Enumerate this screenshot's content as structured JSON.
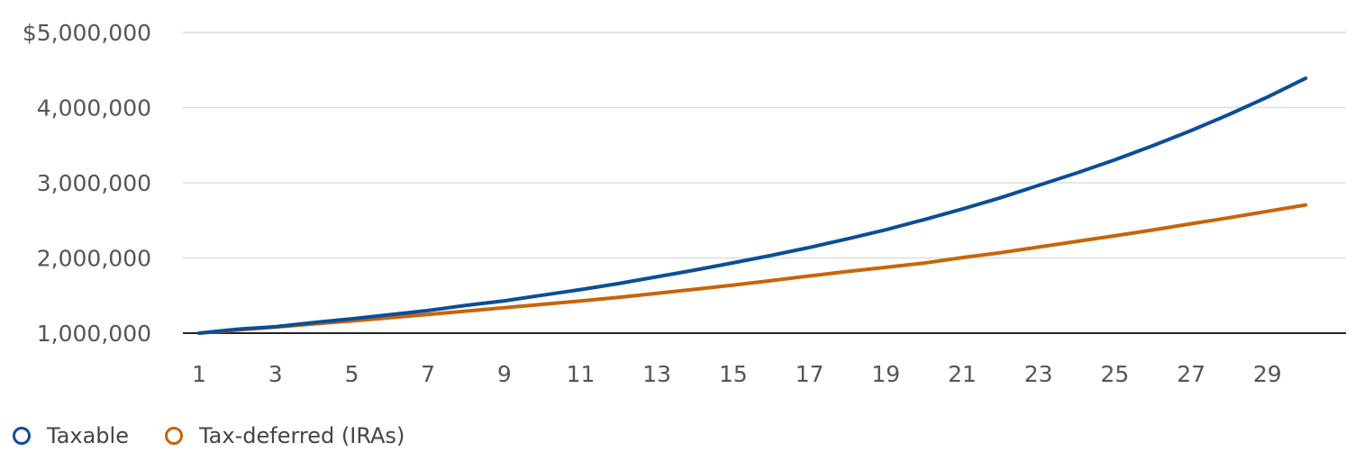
{
  "chart_data": {
    "type": "line",
    "x": [
      1,
      2,
      3,
      4,
      5,
      6,
      7,
      8,
      9,
      10,
      11,
      12,
      13,
      14,
      15,
      16,
      17,
      18,
      19,
      20,
      21,
      22,
      23,
      24,
      25,
      26,
      27,
      28,
      29,
      30
    ],
    "x_tick_labels": [
      "1",
      "3",
      "5",
      "7",
      "9",
      "11",
      "13",
      "15",
      "17",
      "19",
      "21",
      "23",
      "25",
      "27",
      "29"
    ],
    "y_tick_labels": [
      "$5,000,000",
      "4,000,000",
      "3,000,000",
      "2,000,000",
      "1,000,000"
    ],
    "ylim": [
      1000000,
      5000000
    ],
    "grid": true,
    "legend_position": "bottom-left",
    "series": [
      {
        "name": "Taxable",
        "color": "#0b4e96",
        "values": [
          1000000,
          1053000,
          1085000,
          1140000,
          1190000,
          1245000,
          1300000,
          1370000,
          1430000,
          1505000,
          1580000,
          1660000,
          1750000,
          1840000,
          1935000,
          2035000,
          2140000,
          2255000,
          2375000,
          2510000,
          2650000,
          2800000,
          2965000,
          3130000,
          3305000,
          3495000,
          3695000,
          3910000,
          4140000,
          4390000
        ]
      },
      {
        "name": "Tax-deferred (IRAs)",
        "color": "#c8640a",
        "values": [
          1000000,
          1042000,
          1080000,
          1122000,
          1162000,
          1205000,
          1248000,
          1293000,
          1338000,
          1383000,
          1427000,
          1475000,
          1530000,
          1585000,
          1640000,
          1700000,
          1760000,
          1820000,
          1875000,
          1932000,
          2005000,
          2070000,
          2145000,
          2220000,
          2295000,
          2372000,
          2455000,
          2535000,
          2620000,
          2705000
        ]
      }
    ]
  }
}
